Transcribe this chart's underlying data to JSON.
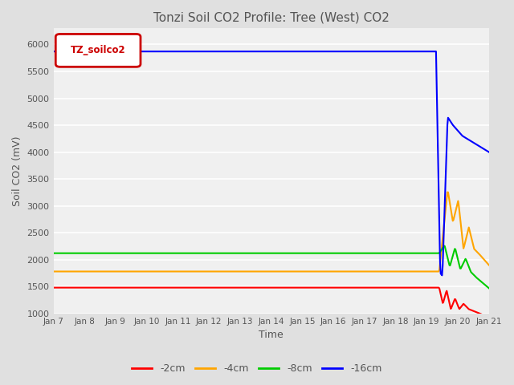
{
  "title": "Tonzi Soil CO2 Profile: Tree (West) CO2",
  "ylabel": "Soil CO2 (mV)",
  "xlabel": "Time",
  "legend_label": "TZ_soilco2",
  "ylim": [
    1000,
    6300
  ],
  "yticks": [
    1000,
    1500,
    2000,
    2500,
    3000,
    3500,
    4000,
    4500,
    5000,
    5500,
    6000
  ],
  "xtick_labels": [
    "Jan 7",
    "Jan 8",
    "Jan 9",
    "Jan 10",
    "Jan 11",
    "Jan 12",
    "Jan 13",
    "Jan 14",
    "Jan 15",
    "Jan 16",
    "Jan 17",
    "Jan 18",
    "Jan 19",
    "Jan 20",
    "Jan 21"
  ],
  "line_colors": [
    "#ff0000",
    "#ffa500",
    "#00cc00",
    "#0000ff"
  ],
  "line_labels": [
    "-2cm",
    "-4cm",
    "-8cm",
    "-16cm"
  ],
  "bg_color": "#e0e0e0",
  "plot_bg_color": "#f0f0f0",
  "legend_box_color": "#cc0000",
  "legend_box_text": "TZ_soilco2",
  "flat_2cm": 1480,
  "flat_4cm": 1780,
  "flat_8cm": 2120,
  "flat_16cm": 5870,
  "transition_day": 12.3
}
